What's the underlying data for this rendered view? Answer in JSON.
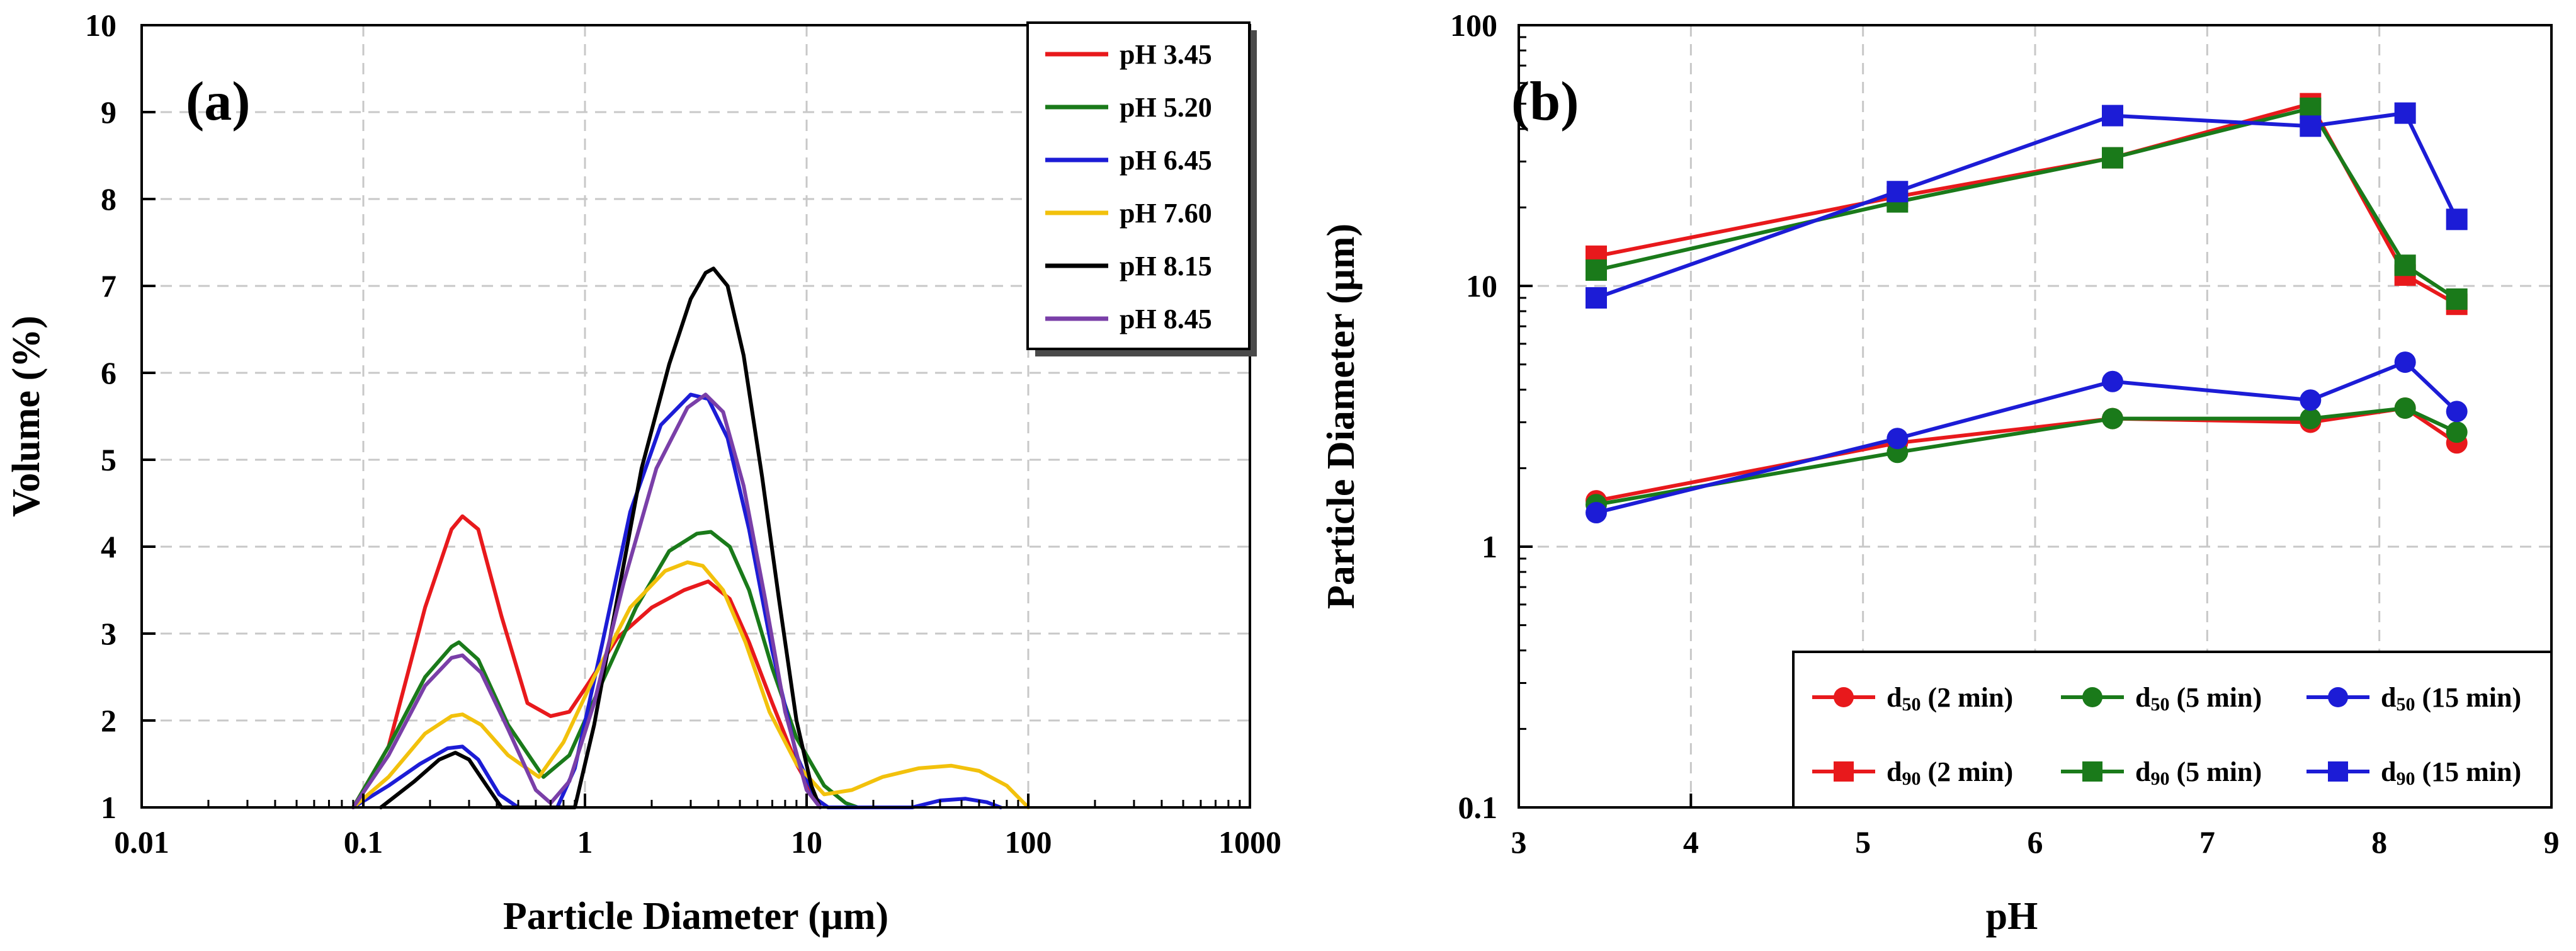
{
  "figure": {
    "panels": [
      "(a)",
      "(b)"
    ]
  },
  "chart_data": [
    {
      "type": "line",
      "panel": "(a)",
      "xlabel": "Particle Diameter (μm)",
      "ylabel": "Volume (%)",
      "xscale": "log",
      "xlim": [
        0.01,
        1000
      ],
      "ylim": [
        1,
        10
      ],
      "grid": true,
      "legend_position": "top-right",
      "x_ticks": [
        0.01,
        0.1,
        1,
        10,
        100,
        1000
      ],
      "x_tick_labels": [
        "0.01",
        "0.1",
        "1",
        "10",
        "100",
        "1000"
      ],
      "y_ticks": [
        1,
        2,
        3,
        4,
        5,
        6,
        7,
        8,
        9,
        10
      ],
      "y_tick_labels": [
        "1",
        "2",
        "3",
        "4",
        "5",
        "6",
        "7",
        "8",
        "9",
        "10"
      ],
      "series": [
        {
          "name": "pH 3.45",
          "color": "#e8191c",
          "x": [
            0.09,
            0.13,
            0.19,
            0.25,
            0.28,
            0.33,
            0.42,
            0.55,
            0.7,
            0.85,
            1.05,
            1.4,
            2.0,
            2.8,
            3.6,
            4.5,
            5.5,
            7,
            9,
            11,
            12.5
          ],
          "y": [
            1.0,
            1.7,
            3.3,
            4.2,
            4.35,
            4.2,
            3.2,
            2.2,
            2.05,
            2.1,
            2.45,
            2.95,
            3.3,
            3.5,
            3.6,
            3.4,
            2.9,
            2.2,
            1.5,
            1.1,
            1.0
          ]
        },
        {
          "name": "pH 5.20",
          "color": "#1a7a1a",
          "x": [
            0.09,
            0.13,
            0.19,
            0.25,
            0.27,
            0.33,
            0.45,
            0.65,
            0.85,
            1.2,
            1.7,
            2.4,
            3.2,
            3.7,
            4.5,
            5.5,
            7,
            9,
            12,
            15,
            17
          ],
          "y": [
            1.0,
            1.7,
            2.5,
            2.85,
            2.9,
            2.7,
            1.95,
            1.35,
            1.6,
            2.45,
            3.3,
            3.95,
            4.15,
            4.17,
            4.0,
            3.5,
            2.6,
            1.8,
            1.25,
            1.05,
            1.0
          ]
        },
        {
          "name": "pH 6.45",
          "color": "#1c1cd6",
          "x": [
            0.09,
            0.13,
            0.18,
            0.24,
            0.28,
            0.33,
            0.41,
            0.5,
            0.62,
            0.75,
            0.9,
            1.2,
            1.6,
            2.2,
            3.0,
            3.6,
            4.4,
            5.5,
            7,
            9,
            11,
            12.5,
            30,
            40,
            52,
            65,
            75
          ],
          "y": [
            1.0,
            1.25,
            1.5,
            1.68,
            1.7,
            1.55,
            1.15,
            1.0,
            1.0,
            1.0,
            1.45,
            2.9,
            4.4,
            5.4,
            5.75,
            5.7,
            5.25,
            4.2,
            2.8,
            1.6,
            1.1,
            1.0,
            1.0,
            1.08,
            1.1,
            1.06,
            1.0
          ]
        },
        {
          "name": "pH 7.60",
          "color": "#f2c10c",
          "x": [
            0.09,
            0.13,
            0.19,
            0.25,
            0.28,
            0.34,
            0.45,
            0.62,
            0.8,
            1.1,
            1.6,
            2.3,
            2.9,
            3.4,
            4.2,
            5.3,
            6.8,
            9,
            12,
            16,
            22,
            32,
            45,
            60,
            80,
            100
          ],
          "y": [
            1.0,
            1.35,
            1.85,
            2.05,
            2.07,
            1.95,
            1.6,
            1.35,
            1.75,
            2.5,
            3.3,
            3.72,
            3.82,
            3.78,
            3.5,
            2.9,
            2.1,
            1.5,
            1.15,
            1.2,
            1.35,
            1.45,
            1.48,
            1.42,
            1.25,
            1.0
          ]
        },
        {
          "name": "pH 8.15",
          "color": "#000000",
          "x": [
            0.12,
            0.17,
            0.22,
            0.26,
            0.3,
            0.36,
            0.42,
            0.9,
            1.1,
            1.4,
            1.8,
            2.4,
            3.0,
            3.5,
            3.8,
            4.4,
            5.2,
            6.3,
            7.5,
            9,
            10.5,
            11.5
          ],
          "y": [
            1.0,
            1.3,
            1.55,
            1.63,
            1.55,
            1.25,
            1.0,
            1.0,
            1.95,
            3.4,
            4.9,
            6.1,
            6.85,
            7.15,
            7.2,
            7.0,
            6.2,
            4.8,
            3.4,
            2.0,
            1.25,
            1.0
          ]
        },
        {
          "name": "pH 8.45",
          "color": "#7a3fa8",
          "x": [
            0.09,
            0.13,
            0.19,
            0.25,
            0.28,
            0.34,
            0.45,
            0.6,
            0.7,
            0.85,
            1.1,
            1.5,
            2.1,
            2.9,
            3.5,
            4.2,
            5.2,
            6.5,
            8,
            10,
            11.5
          ],
          "y": [
            1.0,
            1.6,
            2.4,
            2.72,
            2.75,
            2.55,
            1.9,
            1.2,
            1.05,
            1.3,
            2.2,
            3.6,
            4.9,
            5.6,
            5.75,
            5.55,
            4.7,
            3.4,
            2.1,
            1.2,
            1.0
          ]
        }
      ]
    },
    {
      "type": "line",
      "panel": "(b)",
      "xlabel": "pH",
      "ylabel": "Particle Diameter (μm)",
      "yscale": "log",
      "xlim": [
        3,
        9
      ],
      "ylim": [
        0.1,
        100
      ],
      "grid": true,
      "legend_position": "bottom-right",
      "x_ticks": [
        3,
        4,
        5,
        6,
        7,
        8,
        9
      ],
      "x_tick_labels": [
        "3",
        "4",
        "5",
        "6",
        "7",
        "8",
        "9"
      ],
      "y_ticks": [
        0.1,
        1,
        10,
        100
      ],
      "y_tick_labels": [
        "0.1",
        "1",
        "10",
        "100"
      ],
      "x": [
        3.45,
        5.2,
        6.45,
        7.6,
        8.15,
        8.45
      ],
      "series": [
        {
          "name": "d50 (2 min)",
          "label_main": "d",
          "label_sub": "50",
          "label_rest": " (2 min)",
          "marker": "circle",
          "color": "#e8191c",
          "values": [
            1.5,
            2.5,
            3.1,
            3.0,
            3.4,
            2.5
          ]
        },
        {
          "name": "d50 (5 min)",
          "label_main": "d",
          "label_sub": "50",
          "label_rest": " (5 min)",
          "marker": "circle",
          "color": "#1a7a1a",
          "values": [
            1.45,
            2.3,
            3.1,
            3.1,
            3.4,
            2.75
          ]
        },
        {
          "name": "d50 (15 min)",
          "label_main": "d",
          "label_sub": "50",
          "label_rest": " (15 min)",
          "marker": "circle",
          "color": "#1c1cd6",
          "values": [
            1.35,
            2.6,
            4.3,
            3.65,
            5.1,
            3.3
          ]
        },
        {
          "name": "d90 (2 min)",
          "label_main": "d",
          "label_sub": "90",
          "label_rest": " (2 min)",
          "marker": "square",
          "color": "#e8191c",
          "values": [
            13.0,
            22.0,
            31.0,
            50.0,
            11.0,
            8.5
          ]
        },
        {
          "name": "d90 (5 min)",
          "label_main": "d",
          "label_sub": "90",
          "label_rest": " (5 min)",
          "marker": "square",
          "color": "#1a7a1a",
          "values": [
            11.5,
            21.0,
            31.0,
            48.0,
            12.0,
            8.9
          ]
        },
        {
          "name": "d90 (15 min)",
          "label_main": "d",
          "label_sub": "90",
          "label_rest": " (15 min)",
          "marker": "square",
          "color": "#1c1cd6",
          "values": [
            9.0,
            23.0,
            45.0,
            41.0,
            46.0,
            18.0
          ]
        }
      ]
    }
  ]
}
